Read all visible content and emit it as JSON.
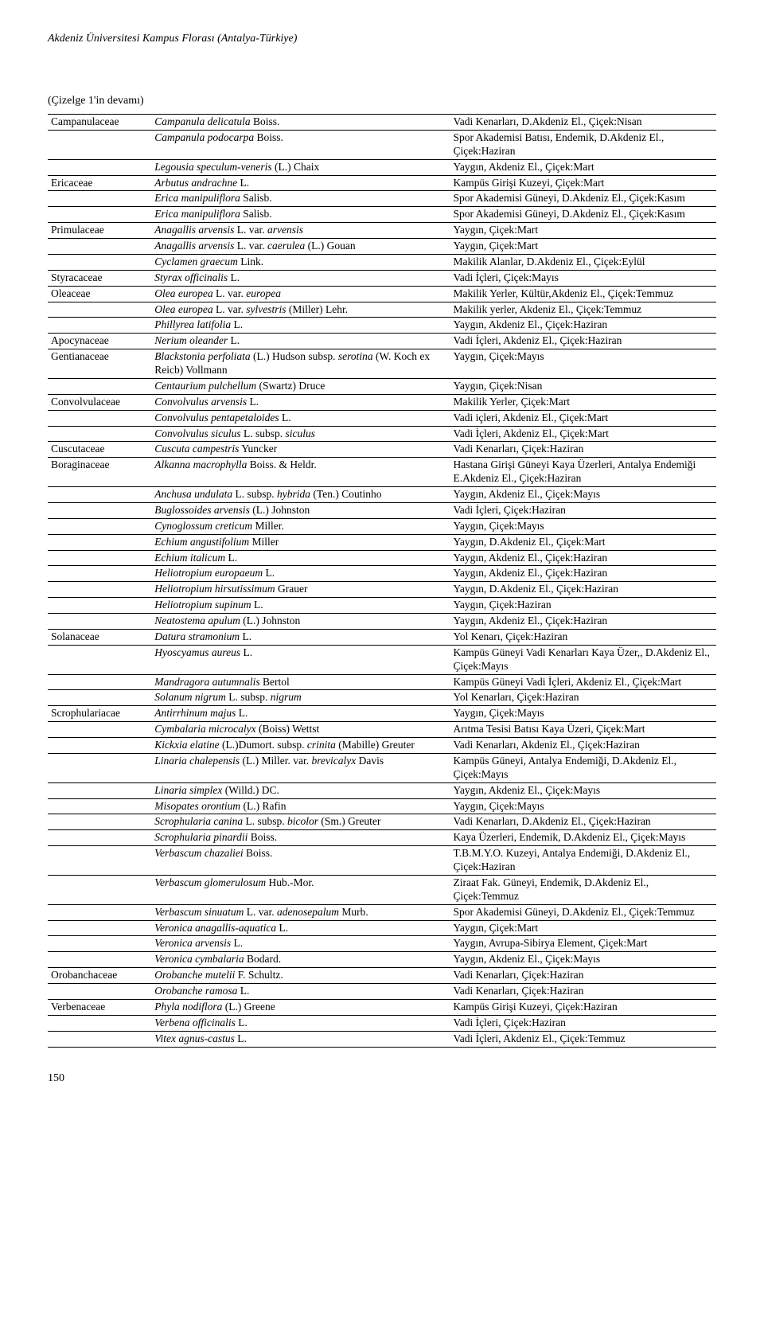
{
  "header": {
    "title": "Akdeniz Üniversitesi Kampus Florası (Antalya-Türkiye)"
  },
  "subtitle": "(Çizelge 1'in devamı)",
  "page_number": "150",
  "rows": [
    {
      "family": "Campanulaceae",
      "species_html": "<i>Campanula delicatula</i> Boiss.",
      "loc": "Vadi Kenarları, D.Akdeniz El., Çiçek:Nisan"
    },
    {
      "family": "",
      "species_html": "<i>Campanula podocarpa</i> Boiss.",
      "loc": "Spor Akademisi Batısı, Endemik, D.Akdeniz El., Çiçek:Haziran"
    },
    {
      "family": "",
      "species_html": "<i>Legousia speculum-veneris</i> (L.) Chaix",
      "loc": "Yaygın, Akdeniz El., Çiçek:Mart"
    },
    {
      "family": "Ericaceae",
      "species_html": "<i>Arbutus andrachne</i> L.",
      "loc": "Kampüs Girişi Kuzeyi, Çiçek:Mart"
    },
    {
      "family": "",
      "species_html": "<i>Erica manipuliflora</i> Salisb.",
      "loc": "Spor Akademisi Güneyi, D.Akdeniz El., Çiçek:Kasım"
    },
    {
      "family": "",
      "species_html": "<i>Erica manipuliflora</i> Salisb.",
      "loc": "Spor Akademisi Güneyi, D.Akdeniz El., Çiçek:Kasım"
    },
    {
      "family": "Primulaceae",
      "species_html": "<i>Anagallis arvensis</i> L. var. <i>arvensis</i>",
      "loc": "Yaygın, Çiçek:Mart"
    },
    {
      "family": "",
      "species_html": "<i>Anagallis arvensis</i> L. var. <i>caerulea</i> (L.) Gouan",
      "loc": "Yaygın, Çiçek:Mart"
    },
    {
      "family": "",
      "species_html": "<i>Cyclamen graecum</i> Link.",
      "loc": "Makilik Alanlar, D.Akdeniz El., Çiçek:Eylül"
    },
    {
      "family": "Styracaceae",
      "species_html": "<i>Styrax officinalis</i> L.",
      "loc": "Vadi İçleri, Çiçek:Mayıs"
    },
    {
      "family": "Oleaceae",
      "species_html": "<i>Olea europea</i> L. var. <i>europea</i>",
      "loc": "Makilik Yerler, Kültür,Akdeniz El., Çiçek:Temmuz"
    },
    {
      "family": "",
      "species_html": "<i>Olea europea</i> L. var. <i>sylvestris</i> (Miller) Lehr.",
      "loc": "Makilik yerler, Akdeniz El., Çiçek:Temmuz"
    },
    {
      "family": "",
      "species_html": "<i>Phillyrea latifolia</i> L.",
      "loc": "Yaygın, Akdeniz El., Çiçek:Haziran"
    },
    {
      "family": "Apocynaceae",
      "species_html": "<i>Nerium oleander</i> L.",
      "loc": "Vadi İçleri, Akdeniz El., Çiçek:Haziran"
    },
    {
      "family": "Gentianaceae",
      "species_html": "<i>Blackstonia perfoliata</i> (L.) Hudson subsp. <i>serotina</i> (W. Koch ex Reicb) Vollmann",
      "loc": "Yaygın, Çiçek:Mayıs"
    },
    {
      "family": "",
      "species_html": "<i>Centaurium pulchellum</i> (Swartz) Druce",
      "loc": "Yaygın, Çiçek:Nisan"
    },
    {
      "family": "Convolvulaceae",
      "species_html": "<i>Convolvulus arvensis</i> L.",
      "loc": "Makilik Yerler, Çiçek:Mart"
    },
    {
      "family": "",
      "species_html": "<i>Convolvulus pentapetaloides</i> L.",
      "loc": "Vadi içleri, Akdeniz El., Çiçek:Mart"
    },
    {
      "family": "",
      "species_html": "<i>Convolvulus siculus</i> L. subsp. <i>siculus</i>",
      "loc": "Vadi İçleri, Akdeniz El., Çiçek:Mart"
    },
    {
      "family": "Cuscutaceae",
      "species_html": "<i>Cuscuta campestris</i> Yuncker",
      "loc": "Vadi Kenarları, Çiçek:Haziran"
    },
    {
      "family": "Boraginaceae",
      "species_html": "<i>Alkanna macrophylla</i>  Boiss. &amp; Heldr.",
      "loc": "Hastana Girişi Güneyi Kaya Üzerleri, Antalya Endemiği E.Akdeniz El., Çiçek:Haziran"
    },
    {
      "family": "",
      "species_html": "<i>Anchusa undulata</i> L. subsp. <i>hybrida</i> (Ten.) Coutinho",
      "loc": "Yaygın, Akdeniz El., Çiçek:Mayıs"
    },
    {
      "family": "",
      "species_html": "<i>Buglossoides arvensis</i> (L.) Johnston",
      "loc": "Vadi İçleri, Çiçek:Haziran"
    },
    {
      "family": "",
      "species_html": "<i>Cynoglossum creticum</i> Miller.",
      "loc": "Yaygın, Çiçek:Mayıs"
    },
    {
      "family": "",
      "species_html": "<i>Echium angustifolium</i> Miller",
      "loc": "Yaygın, D.Akdeniz El., Çiçek:Mart"
    },
    {
      "family": "",
      "species_html": "<i>Echium italicum</i> L.",
      "loc": "Yaygın, Akdeniz El., Çiçek:Haziran"
    },
    {
      "family": "",
      "species_html": "<i>Heliotropium europaeum</i> L.",
      "loc": "Yaygın, Akdeniz El., Çiçek:Haziran"
    },
    {
      "family": "",
      "species_html": "<i>Heliotropium hirsutissimum</i> Grauer",
      "loc": "Yaygın, D.Akdeniz El., Çiçek:Haziran"
    },
    {
      "family": "",
      "species_html": "<i>Heliotropium supinum</i> L.",
      "loc": "Yaygın, Çiçek:Haziran"
    },
    {
      "family": "",
      "species_html": "<i>Neatostema apulum</i> (L.) Johnston",
      "loc": "Yaygın, Akdeniz El., Çiçek:Haziran"
    },
    {
      "family": "Solanaceae",
      "species_html": "<i>Datura stramonium</i> L.",
      "loc": "Yol Kenarı, Çiçek:Haziran"
    },
    {
      "family": "",
      "species_html": "<i>Hyoscyamus aureus</i> L.",
      "loc": "Kampüs Güneyi Vadi Kenarları Kaya Üzer,, D.Akdeniz El., Çiçek:Mayıs"
    },
    {
      "family": "",
      "species_html": "<i>Mandragora autumnalis</i> Bertol",
      "loc": "Kampüs Güneyi Vadi İçleri, Akdeniz El., Çiçek:Mart"
    },
    {
      "family": "",
      "species_html": "<i>Solanum nigrum</i> L. subsp. <i>nigrum</i>",
      "loc": "Yol Kenarları, Çiçek:Haziran"
    },
    {
      "family": "Scrophulariacae",
      "species_html": "<i>Antirrhinum majus</i> L.",
      "loc": "Yaygın, Çiçek:Mayıs"
    },
    {
      "family": "",
      "species_html": "<i>Cymbalaria microcalyx</i> (Boiss) Wettst",
      "loc": "Arıtma Tesisi Batısı Kaya Üzeri, Çiçek:Mart"
    },
    {
      "family": "",
      "species_html": "<i>Kickxia elatine</i> (L.)Dumort. subsp. <i>crinita</i> (Mabille) Greuter",
      "loc": "Vadi Kenarları, Akdeniz El., Çiçek:Haziran"
    },
    {
      "family": "",
      "species_html": "<i>Linaria chalepensis</i> (L.) Miller. var. <i>brevicalyx</i> Davis",
      "loc": "Kampüs Güneyi, Antalya Endemiği, D.Akdeniz El., Çiçek:Mayıs"
    },
    {
      "family": "",
      "species_html": "<i>Linaria simplex</i> (Willd.) DC.",
      "loc": "Yaygın, Akdeniz El., Çiçek:Mayıs"
    },
    {
      "family": "",
      "species_html": "<i>Misopates orontium</i> (L.) Rafin",
      "loc": "Yaygın, Çiçek:Mayıs"
    },
    {
      "family": "",
      "species_html": "<i>Scrophularia canina</i> L. subsp. <i>bicolor</i> (Sm.) Greuter",
      "loc": "Vadi Kenarları, D.Akdeniz El., Çiçek:Haziran"
    },
    {
      "family": "",
      "species_html": "<i>Scrophularia pinardii</i>  Boiss.",
      "loc": "Kaya Üzerleri, Endemik, D.Akdeniz El., Çiçek:Mayıs"
    },
    {
      "family": "",
      "species_html": "<i>Verbascum chazaliei</i>  Boiss.",
      "loc": "T.B.M.Y.O. Kuzeyi, Antalya Endemiği, D.Akdeniz El., Çiçek:Haziran"
    },
    {
      "family": "",
      "species_html": "<i>Verbascum glomerulosum</i> Hub.-Mor.",
      "loc": "Ziraat Fak. Güneyi, Endemik, D.Akdeniz El., Çiçek:Temmuz"
    },
    {
      "family": "",
      "species_html": "<i>Verbascum sinuatum</i> L. var. <i>adenosepalum</i> Murb.",
      "loc": "Spor Akademisi Güneyi, D.Akdeniz El., Çiçek:Temmuz"
    },
    {
      "family": "",
      "species_html": "<i>Veronica anagallis-aquatica</i> L.",
      "loc": "Yaygın, Çiçek:Mart"
    },
    {
      "family": "",
      "species_html": "<i>Veronica arvensis</i> L.",
      "loc": "Yaygın, Avrupa-Sibirya Element, Çiçek:Mart"
    },
    {
      "family": "",
      "species_html": "<i>Veronica cymbalaria</i> Bodard.",
      "loc": "Yaygın, Akdeniz El., Çiçek:Mayıs"
    },
    {
      "family": "Orobanchaceae",
      "species_html": "<i>Orobanche mutelii</i> F. Schultz.",
      "loc": "Vadi Kenarları, Çiçek:Haziran"
    },
    {
      "family": "",
      "species_html": "<i>Orobanche ramosa</i> L.",
      "loc": "Vadi Kenarları, Çiçek:Haziran"
    },
    {
      "family": "Verbenaceae",
      "species_html": "<i>Phyla nodiflora</i> (L.) Greene",
      "loc": "Kampüs Girişi Kuzeyi, Çiçek:Haziran"
    },
    {
      "family": "",
      "species_html": "<i>Verbena officinalis</i> L.",
      "loc": "Vadi İçleri, Çiçek:Haziran"
    },
    {
      "family": "",
      "species_html": "<i>Vitex agnus-castus</i> L.",
      "loc": "Vadi İçleri, Akdeniz El., Çiçek:Temmuz"
    }
  ]
}
